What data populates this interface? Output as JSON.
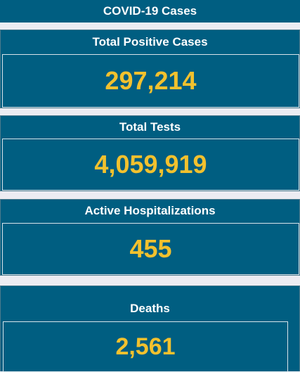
{
  "header": {
    "title": "COVID-19 Cases"
  },
  "cards": [
    {
      "label": "Total Positive Cases",
      "value": "297,214"
    },
    {
      "label": "Total Tests",
      "value": "4,059,919"
    },
    {
      "label": "Active Hospitalizations",
      "value": "455"
    },
    {
      "label": "Deaths",
      "value": "2,561"
    }
  ],
  "colors": {
    "panel": "#005e81",
    "value": "#f2c12e",
    "label": "#ffffff",
    "background": "#ececf2"
  }
}
